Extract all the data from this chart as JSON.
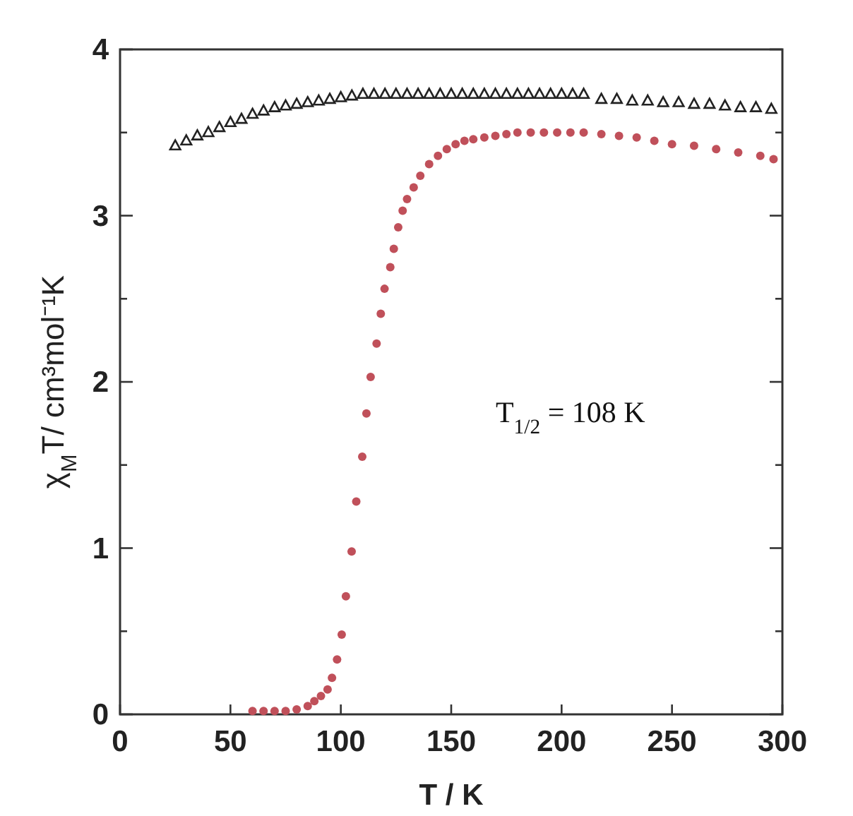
{
  "chart_data": {
    "type": "scatter",
    "xlabel": "T / K",
    "ylabel": "χ$_{M}$T/ cm³mol⁻¹K",
    "xlim": [
      0,
      300
    ],
    "ylim": [
      0,
      4
    ],
    "xticks": [
      0,
      50,
      100,
      150,
      200,
      250,
      300
    ],
    "yticks": [
      0,
      {
        "value": 0.5,
        "label": null
      },
      1,
      {
        "value": 1.5,
        "label": null
      },
      2,
      {
        "value": 2.5,
        "label": null
      },
      3,
      {
        "value": 3.5,
        "label": null
      },
      4
    ],
    "annotations": [
      "T$_{1/2}$ = 108 K"
    ],
    "series": [
      {
        "color": "#222222",
        "marker": "triangle",
        "x": [
          25,
          30,
          35,
          40,
          45,
          50,
          55,
          60,
          65,
          70,
          75,
          80,
          85,
          90,
          95,
          100,
          105,
          110,
          115,
          120,
          125,
          130,
          135,
          140,
          145,
          150,
          155,
          160,
          165,
          170,
          175,
          180,
          185,
          190,
          195,
          200,
          205,
          210,
          218,
          225,
          232,
          239,
          246,
          253,
          260,
          267,
          274,
          281,
          288,
          295
        ],
        "values": [
          3.42,
          3.45,
          3.48,
          3.5,
          3.53,
          3.56,
          3.58,
          3.61,
          3.63,
          3.65,
          3.66,
          3.67,
          3.68,
          3.69,
          3.7,
          3.71,
          3.72,
          3.73,
          3.73,
          3.73,
          3.73,
          3.73,
          3.73,
          3.73,
          3.73,
          3.73,
          3.73,
          3.73,
          3.73,
          3.73,
          3.73,
          3.73,
          3.73,
          3.73,
          3.73,
          3.73,
          3.73,
          3.73,
          3.7,
          3.7,
          3.69,
          3.69,
          3.68,
          3.68,
          3.67,
          3.67,
          3.66,
          3.65,
          3.65,
          3.64
        ]
      },
      {
        "color": "#c0505a",
        "marker": "circle",
        "x": [
          60,
          65,
          70,
          75,
          80,
          85,
          88,
          91,
          94,
          96,
          98.3,
          100.4,
          102.3,
          104.9,
          107,
          109.7,
          111.6,
          113.5,
          116.2,
          118.1,
          119.8,
          122.4,
          124,
          126,
          128,
          130,
          133,
          136,
          140,
          144,
          148,
          152,
          156,
          160,
          165,
          170,
          175,
          180,
          186,
          192,
          198,
          204,
          210,
          218,
          226,
          234,
          242,
          250,
          260,
          270,
          280,
          290,
          296
        ],
        "values": [
          0.02,
          0.02,
          0.02,
          0.02,
          0.03,
          0.05,
          0.08,
          0.11,
          0.15,
          0.22,
          0.33,
          0.48,
          0.71,
          0.98,
          1.28,
          1.55,
          1.81,
          2.03,
          2.23,
          2.41,
          2.56,
          2.69,
          2.8,
          2.93,
          3.03,
          3.1,
          3.17,
          3.24,
          3.31,
          3.36,
          3.4,
          3.43,
          3.45,
          3.46,
          3.47,
          3.48,
          3.49,
          3.5,
          3.5,
          3.5,
          3.5,
          3.5,
          3.5,
          3.49,
          3.48,
          3.47,
          3.45,
          3.43,
          3.42,
          3.4,
          3.38,
          3.36,
          3.34
        ]
      }
    ]
  }
}
